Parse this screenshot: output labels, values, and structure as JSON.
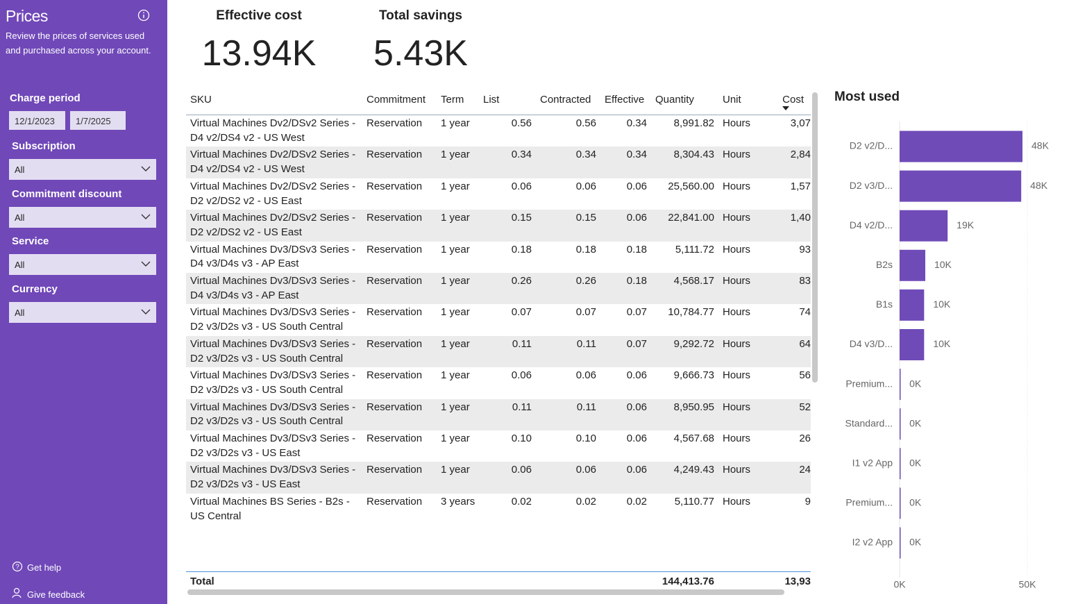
{
  "sidebar": {
    "title": "Prices",
    "description": "Review the prices of services used and purchased across your account.",
    "charge_period": {
      "label": "Charge period",
      "start": "12/1/2023",
      "end": "1/7/2025"
    },
    "filters": [
      {
        "label": "Subscription",
        "value": "All"
      },
      {
        "label": "Commitment discount",
        "value": "All"
      },
      {
        "label": "Service",
        "value": "All"
      },
      {
        "label": "Currency",
        "value": "All"
      }
    ],
    "links": [
      "Get help",
      "Give feedback"
    ]
  },
  "kpis": [
    {
      "label": "Effective cost",
      "value": "13.94K"
    },
    {
      "label": "Total savings",
      "value": "5.43K"
    }
  ],
  "table": {
    "columns": [
      "SKU",
      "Commitment",
      "Term",
      "List",
      "Contracted",
      "Effective",
      "Quantity",
      "Unit",
      "Cost"
    ],
    "rows": [
      [
        "Virtual Machines Dv2/DSv2 Series - D4 v2/DS4 v2 - US West",
        "Reservation",
        "1 year",
        "0.56",
        "0.56",
        "0.34",
        "8,991.82",
        "Hours",
        "3,07"
      ],
      [
        "Virtual Machines Dv2/DSv2 Series - D4 v2/DS4 v2 - US West",
        "Reservation",
        "1 year",
        "0.34",
        "0.34",
        "0.34",
        "8,304.43",
        "Hours",
        "2,84"
      ],
      [
        "Virtual Machines Dv2/DSv2 Series - D2 v2/DS2 v2 - US East",
        "Reservation",
        "1 year",
        "0.06",
        "0.06",
        "0.06",
        "25,560.00",
        "Hours",
        "1,57"
      ],
      [
        "Virtual Machines Dv2/DSv2 Series - D2 v2/DS2 v2 - US East",
        "Reservation",
        "1 year",
        "0.15",
        "0.15",
        "0.06",
        "22,841.00",
        "Hours",
        "1,40"
      ],
      [
        "Virtual Machines Dv3/DSv3 Series - D4 v3/D4s v3 - AP East",
        "Reservation",
        "1 year",
        "0.18",
        "0.18",
        "0.18",
        "5,111.72",
        "Hours",
        "93"
      ],
      [
        "Virtual Machines Dv3/DSv3 Series - D4 v3/D4s v3 - AP East",
        "Reservation",
        "1 year",
        "0.26",
        "0.26",
        "0.18",
        "4,568.17",
        "Hours",
        "83"
      ],
      [
        "Virtual Machines Dv3/DSv3 Series - D2 v3/D2s v3 - US South Central",
        "Reservation",
        "1 year",
        "0.07",
        "0.07",
        "0.07",
        "10,784.77",
        "Hours",
        "74"
      ],
      [
        "Virtual Machines Dv3/DSv3 Series - D2 v3/D2s v3 - US South Central",
        "Reservation",
        "1 year",
        "0.11",
        "0.11",
        "0.07",
        "9,292.72",
        "Hours",
        "64"
      ],
      [
        "Virtual Machines Dv3/DSv3 Series - D2 v3/D2s v3 - US South Central",
        "Reservation",
        "1 year",
        "0.06",
        "0.06",
        "0.06",
        "9,666.73",
        "Hours",
        "56"
      ],
      [
        "Virtual Machines Dv3/DSv3 Series - D2 v3/D2s v3 - US South Central",
        "Reservation",
        "1 year",
        "0.11",
        "0.11",
        "0.06",
        "8,950.95",
        "Hours",
        "52"
      ],
      [
        "Virtual Machines Dv3/DSv3 Series - D2 v3/D2s v3 - US East",
        "Reservation",
        "1 year",
        "0.10",
        "0.10",
        "0.06",
        "4,567.68",
        "Hours",
        "26"
      ],
      [
        "Virtual Machines Dv3/DSv3 Series - D2 v3/D2s v3 - US East",
        "Reservation",
        "1 year",
        "0.06",
        "0.06",
        "0.06",
        "4,249.43",
        "Hours",
        "24"
      ],
      [
        "Virtual Machines BS Series - B2s - US Central",
        "Reservation",
        "3 years",
        "0.02",
        "0.02",
        "0.02",
        "5,110.77",
        "Hours",
        "9"
      ]
    ],
    "total": [
      "Total",
      "",
      "",
      "",
      "",
      "",
      "144,413.76",
      "",
      "13,93"
    ]
  },
  "chart_data": {
    "type": "bar",
    "title": "Most used",
    "categories": [
      "D2 v2/D...",
      "D2 v3/D...",
      "D4 v2/D...",
      "B2s",
      "B1s",
      "D4 v3/D...",
      "Premium...",
      "Standard...",
      "I1 v2 App",
      "Premium...",
      "I2 v2 App"
    ],
    "values": [
      48100,
      47600,
      18800,
      10050,
      9600,
      9600,
      300,
      300,
      300,
      300,
      300
    ],
    "value_labels": [
      "48K",
      "48K",
      "19K",
      "10K",
      "10K",
      "10K",
      "0K",
      "0K",
      "0K",
      "0K",
      "0K"
    ],
    "color": "#6f4bb8",
    "xlim": [
      0,
      50000
    ],
    "xticks": [
      {
        "value": 0,
        "label": "0K"
      },
      {
        "value": 50000,
        "label": "50K"
      }
    ]
  }
}
